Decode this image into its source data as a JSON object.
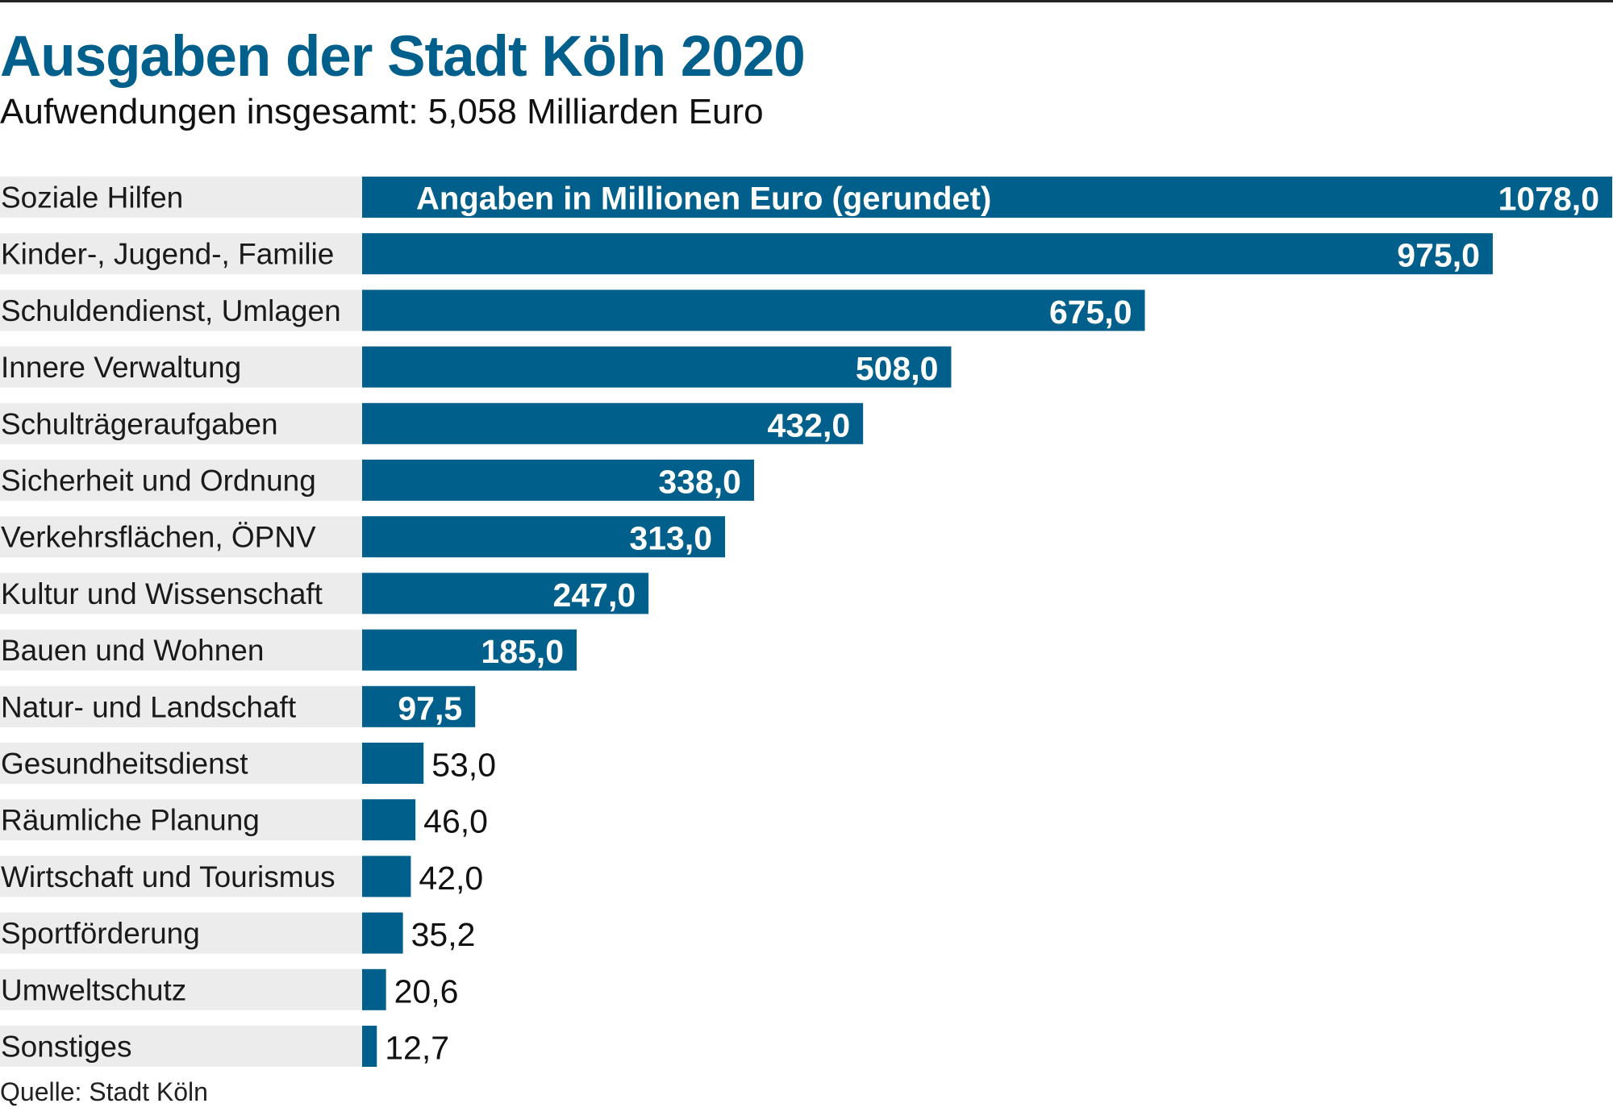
{
  "chart_data": {
    "type": "bar",
    "orientation": "horizontal",
    "title": "Ausgaben der Stadt Köln 2020",
    "subtitle": "Aufwendungen insgesamt: 5,058 Milliarden Euro",
    "annotation": "Angaben in Millionen Euro (gerundet)",
    "source": "Quelle: Stadt Köln",
    "bar_color": "#005f8b",
    "row_background": "#ececec",
    "categories": [
      "Soziale Hilfen",
      "Kinder-, Jugend-, Familie",
      "Schuldendienst, Umlagen",
      "Innere Verwaltung",
      "Schulträgeraufgaben",
      "Sicherheit und Ordnung",
      "Verkehrsflächen, ÖPNV",
      "Kultur und Wissenschaft",
      "Bauen und Wohnen",
      "Natur- und Landschaft",
      "Gesundheitsdienst",
      "Räumliche Planung",
      "Wirtschaft und Tourismus",
      "Sportförderung",
      "Umweltschutz",
      "Sonstiges"
    ],
    "values": [
      1078.0,
      975.0,
      675.0,
      508.0,
      432.0,
      338.0,
      313.0,
      247.0,
      185.0,
      97.5,
      53.0,
      46.0,
      42.0,
      35.2,
      20.6,
      12.7
    ],
    "value_labels": [
      "1078,0",
      "975,0",
      "675,0",
      "508,0",
      "432,0",
      "338,0",
      "313,0",
      "247,0",
      "185,0",
      "97,5",
      "53,0",
      "46,0",
      "42,0",
      "35,2",
      "20,6",
      "12,7"
    ],
    "xlim": [
      0,
      1078
    ],
    "grid": false,
    "legend": "none"
  }
}
